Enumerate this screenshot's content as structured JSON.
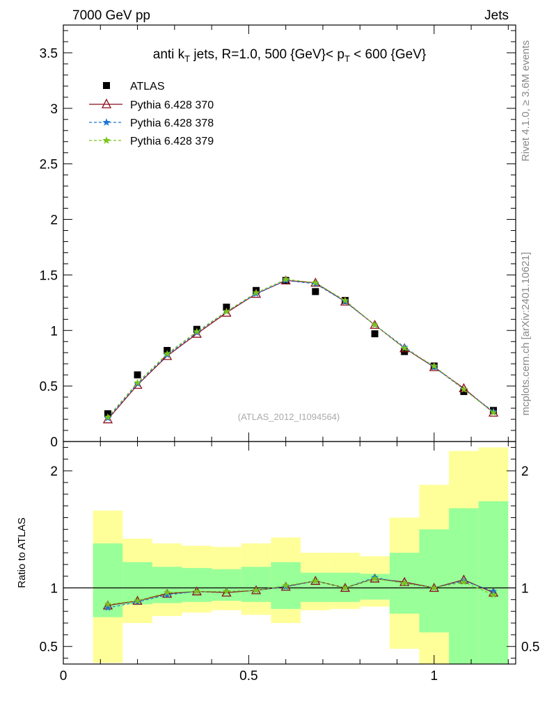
{
  "header": {
    "left": "7000 GeV pp",
    "right": "Jets",
    "side_label_1": "Rivet 4.1.0, ≥ 3.6M events",
    "side_label_2": "mcplots.cern.ch [arXiv:2401.10621]",
    "watermark": "(ATLAS_2012_I1094564)"
  },
  "chart_data": [
    {
      "type": "line",
      "title_parts": [
        "anti k",
        "T",
        " jets, R=1.0,  500 {GeV}< p",
        "T",
        " < 600 {GeV}"
      ],
      "x": [
        0.12,
        0.2,
        0.28,
        0.36,
        0.44,
        0.52,
        0.6,
        0.68,
        0.76,
        0.84,
        0.92,
        1.0,
        1.08,
        1.16
      ],
      "xlim": [
        0,
        1.22
      ],
      "ylim": [
        0,
        3.75
      ],
      "yticks": [
        0,
        0.5,
        1,
        1.5,
        2,
        2.5,
        3,
        3.5
      ],
      "ytick_labels": [
        "0",
        "0.5",
        "1",
        "1.5",
        "2",
        "2.5",
        "3",
        "3.5"
      ],
      "series": [
        {
          "name": "ATLAS",
          "style": "data",
          "color": "#000000",
          "values": [
            0.25,
            0.6,
            0.82,
            1.01,
            1.21,
            1.36,
            1.45,
            1.35,
            1.27,
            0.97,
            0.81,
            0.68,
            0.45,
            0.28
          ]
        },
        {
          "name": "Pythia 6.428 370",
          "style": "triangle-solid",
          "color": "#8b0a1c",
          "values": [
            0.2,
            0.51,
            0.77,
            0.97,
            1.16,
            1.33,
            1.45,
            1.43,
            1.26,
            1.05,
            0.84,
            0.67,
            0.48,
            0.26
          ]
        },
        {
          "name": "Pythia 6.428 378",
          "style": "star-dashed",
          "color": "#1a78d2",
          "values": [
            0.21,
            0.52,
            0.78,
            0.98,
            1.17,
            1.33,
            1.45,
            1.42,
            1.26,
            1.05,
            0.85,
            0.67,
            0.47,
            0.27
          ]
        },
        {
          "name": "Pythia 6.428 379",
          "style": "star-dashed",
          "color": "#7ac41c",
          "values": [
            0.22,
            0.53,
            0.79,
            0.99,
            1.17,
            1.34,
            1.46,
            1.43,
            1.27,
            1.05,
            0.84,
            0.68,
            0.47,
            0.26
          ]
        }
      ]
    },
    {
      "type": "line",
      "ylabel": "Ratio to ATLAS",
      "xlabel": "",
      "x": [
        0.12,
        0.2,
        0.28,
        0.36,
        0.44,
        0.52,
        0.6,
        0.68,
        0.76,
        0.84,
        0.92,
        1.0,
        1.08,
        1.16
      ],
      "xlim": [
        0,
        1.22
      ],
      "ylim": [
        0.35,
        2.25
      ],
      "xticks": [
        0,
        0.5,
        1
      ],
      "xtick_labels": [
        "0",
        "0.5",
        "1"
      ],
      "yticks": [
        0.5,
        1,
        2
      ],
      "ytick_labels": [
        "0.5",
        "1",
        "2"
      ],
      "bins": [
        [
          0.08,
          0.16
        ],
        [
          0.16,
          0.24
        ],
        [
          0.24,
          0.32
        ],
        [
          0.32,
          0.4
        ],
        [
          0.4,
          0.48
        ],
        [
          0.48,
          0.56
        ],
        [
          0.56,
          0.64
        ],
        [
          0.64,
          0.72
        ],
        [
          0.72,
          0.8
        ],
        [
          0.8,
          0.88
        ],
        [
          0.88,
          0.96
        ],
        [
          0.96,
          1.04
        ],
        [
          1.04,
          1.12
        ],
        [
          1.12,
          1.2
        ]
      ],
      "band_yellow": [
        [
          0.36,
          1.66
        ],
        [
          0.7,
          1.42
        ],
        [
          0.76,
          1.38
        ],
        [
          0.79,
          1.36
        ],
        [
          0.81,
          1.35
        ],
        [
          0.77,
          1.38
        ],
        [
          0.7,
          1.43
        ],
        [
          0.81,
          1.3
        ],
        [
          0.82,
          1.3
        ],
        [
          0.84,
          1.27
        ],
        [
          0.48,
          1.6
        ],
        [
          0.32,
          1.88
        ],
        [
          0.3,
          2.17
        ],
        [
          0.3,
          2.2
        ]
      ],
      "band_green": [
        [
          0.75,
          1.38
        ],
        [
          0.86,
          1.22
        ],
        [
          0.87,
          1.18
        ],
        [
          0.88,
          1.17
        ],
        [
          0.89,
          1.16
        ],
        [
          0.88,
          1.18
        ],
        [
          0.82,
          1.22
        ],
        [
          0.88,
          1.13
        ],
        [
          0.88,
          1.13
        ],
        [
          0.9,
          1.12
        ],
        [
          0.78,
          1.3
        ],
        [
          0.62,
          1.5
        ],
        [
          0.33,
          1.68
        ],
        [
          0.3,
          1.74
        ]
      ],
      "series": [
        {
          "name": "Pythia 6.428 370",
          "style": "triangle-solid",
          "color": "#8b0a1c",
          "values": [
            0.85,
            0.89,
            0.95,
            0.97,
            0.96,
            0.98,
            1.01,
            1.06,
            1.0,
            1.08,
            1.05,
            1.0,
            1.07,
            0.96
          ]
        },
        {
          "name": "Pythia 6.428 378",
          "style": "star-dashed",
          "color": "#1a78d2",
          "values": [
            0.83,
            0.88,
            0.94,
            0.97,
            0.97,
            0.98,
            1.01,
            1.06,
            1.0,
            1.09,
            1.04,
            1.0,
            1.06,
            0.97
          ]
        },
        {
          "name": "Pythia 6.428 379",
          "style": "star-dashed",
          "color": "#7ac41c",
          "values": [
            0.86,
            0.89,
            0.96,
            0.97,
            0.97,
            0.98,
            1.02,
            1.06,
            1.0,
            1.08,
            1.04,
            1.0,
            1.05,
            0.94
          ]
        }
      ]
    }
  ]
}
